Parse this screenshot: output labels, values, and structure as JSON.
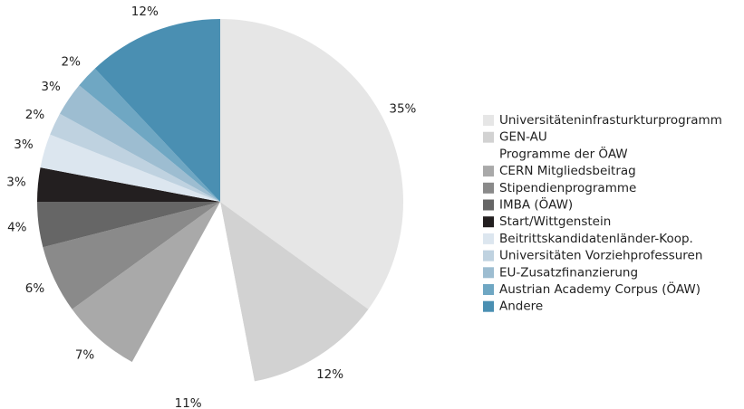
{
  "chart_data": {
    "type": "pie",
    "categories": [
      "Universitäteninfrasturkturprogramm",
      "GEN-AU",
      "Programme der ÖAW",
      "CERN Mitgliedsbeitrag",
      "Stipendienprogramme",
      "IMBA (ÖAW)",
      "Start/Wittgenstein",
      "Beitrittskandidatenländer-Koop.",
      "Universitäten Vorziehprofessuren",
      "EU-Zusatzfinanzierung",
      "Austrian Academy Corpus (ÖAW)",
      "Andere"
    ],
    "values": [
      35,
      12,
      11,
      7,
      6,
      4,
      3,
      3,
      2,
      3,
      2,
      12
    ],
    "value_labels": [
      "35%",
      "12%",
      "11%",
      "7%",
      "6%",
      "4%",
      "3%",
      "3%",
      "2%",
      "3%",
      "2%",
      "12%"
    ],
    "colors": [
      "#e6e6e6",
      "#d2d2d2",
      "#ffffff",
      "#a9a9a9",
      "#8a8a8a",
      "#666666",
      "#231f20",
      "#dce6ef",
      "#bfd2e0",
      "#9dbdd1",
      "#6fa7c3",
      "#4a8fb2"
    ],
    "legend": "right"
  }
}
